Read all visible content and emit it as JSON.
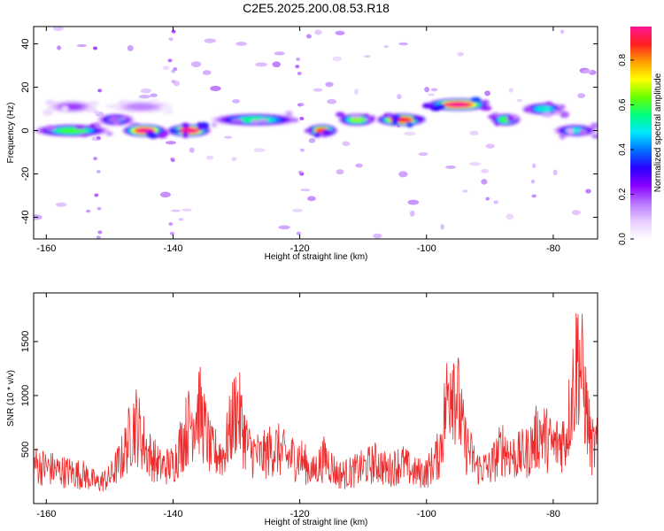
{
  "title": "C2E5.2025.200.08.53.R18",
  "colors": {
    "snr_line": "#ee2a2a",
    "frame": "#000000",
    "colormap": [
      "#ffffff",
      "#e6ccff",
      "#b878ff",
      "#8a00ff",
      "#2a00ff",
      "#0070ff",
      "#00e6ff",
      "#00ff80",
      "#66ff00",
      "#ffff00",
      "#ffa000",
      "#ff2020",
      "#ff1493"
    ]
  },
  "chart_data": [
    {
      "type": "heatmap",
      "xlabel": "Height of straight line (km)",
      "ylabel": "Frequency (Hz)",
      "xlim": [
        -162,
        -73
      ],
      "ylim": [
        -50,
        48
      ],
      "xticks": [
        -160,
        -140,
        -120,
        -100,
        -80
      ],
      "yticks": [
        40,
        20,
        0,
        -20,
        -40
      ],
      "grid": false,
      "colorbar": {
        "label": "Normalized spectral amplitude",
        "range": [
          0,
          0.95
        ],
        "ticks": [
          0.0,
          0.2,
          0.4,
          0.6,
          0.8
        ]
      },
      "bands": [
        {
          "x": [
            -162,
            -150
          ],
          "freq": 0,
          "amplitude": 0.6
        },
        {
          "x": [
            -152,
            -146
          ],
          "freq": 5,
          "amplitude": 0.45
        },
        {
          "x": [
            -148,
            -141
          ],
          "freq": 0,
          "amplitude": 0.95
        },
        {
          "x": [
            -141,
            -134
          ],
          "freq": 0,
          "amplitude": 0.95
        },
        {
          "x": [
            -160,
            -152
          ],
          "freq": 11,
          "amplitude": 0.2
        },
        {
          "x": [
            -150,
            -140
          ],
          "freq": 11,
          "amplitude": 0.15
        },
        {
          "x": [
            -134,
            -120
          ],
          "freq": 5,
          "amplitude": 0.55
        },
        {
          "x": [
            -119,
            -114
          ],
          "freq": 0,
          "amplitude": 0.85
        },
        {
          "x": [
            -114,
            -108
          ],
          "freq": 5,
          "amplitude": 0.65
        },
        {
          "x": [
            -108,
            -100
          ],
          "freq": 5,
          "amplitude": 0.9
        },
        {
          "x": [
            -100,
            -90
          ],
          "freq": 12,
          "amplitude": 0.95
        },
        {
          "x": [
            -90,
            -85
          ],
          "freq": 5,
          "amplitude": 0.6
        },
        {
          "x": [
            -85,
            -78
          ],
          "freq": 10,
          "amplitude": 0.5
        },
        {
          "x": [
            -80,
            -73
          ],
          "freq": 0,
          "amplitude": 0.5
        }
      ]
    },
    {
      "type": "line",
      "xlabel": "Height of straight line (km)",
      "ylabel": "SNR (10 * v/v)",
      "xlim": [
        -162,
        -73
      ],
      "ylim": [
        0,
        1950
      ],
      "xticks": [
        -160,
        -140,
        -120,
        -100,
        -80
      ],
      "yticks": [
        500,
        1000,
        1500
      ],
      "grid": false,
      "series": [
        {
          "x": [
            -162,
            -160,
            -158,
            -156,
            -154,
            -152,
            -150,
            -148,
            -146,
            -144,
            -142,
            -140,
            -138,
            -136,
            -134,
            -132,
            -130,
            -128,
            -126,
            -124,
            -122,
            -120,
            -118,
            -116,
            -114,
            -112,
            -110,
            -108,
            -106,
            -104,
            -102,
            -100,
            -98,
            -96,
            -94,
            -92,
            -90,
            -88,
            -86,
            -84,
            -82,
            -80,
            -78,
            -76,
            -74
          ],
          "values": [
            380,
            350,
            320,
            300,
            280,
            200,
            250,
            450,
            800,
            500,
            360,
            380,
            700,
            950,
            500,
            480,
            950,
            520,
            450,
            550,
            450,
            450,
            300,
            450,
            280,
            300,
            350,
            400,
            320,
            400,
            300,
            300,
            480,
            1350,
            600,
            350,
            350,
            550,
            450,
            500,
            700,
            550,
            650,
            1500,
            550
          ]
        }
      ]
    }
  ]
}
